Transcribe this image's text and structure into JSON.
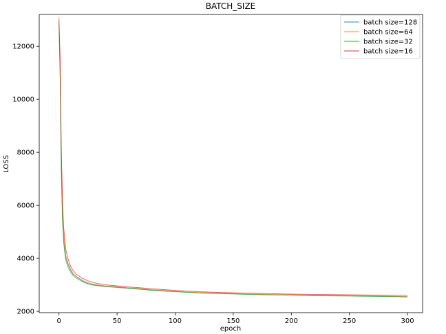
{
  "chart_data": {
    "type": "line",
    "title": "BATCH_SIZE",
    "xlabel": "epoch",
    "ylabel": "LOSS",
    "xlim": [
      -17,
      313
    ],
    "ylim": [
      1950,
      13200
    ],
    "x_ticks": [
      0,
      50,
      100,
      150,
      200,
      250,
      300
    ],
    "y_ticks": [
      2000,
      4000,
      6000,
      8000,
      10000,
      12000
    ],
    "grid": false,
    "legend_position": "top-right",
    "x": [
      0,
      1,
      2,
      3,
      4,
      5,
      6,
      8,
      10,
      12,
      15,
      20,
      25,
      30,
      40,
      50,
      60,
      70,
      80,
      90,
      100,
      120,
      140,
      160,
      180,
      200,
      220,
      240,
      260,
      280,
      300
    ],
    "series": [
      {
        "name": "batch size=128",
        "color": "#1f77b4",
        "values": [
          12900,
          11000,
          7500,
          5600,
          4800,
          4300,
          4000,
          3750,
          3550,
          3400,
          3300,
          3150,
          3050,
          3000,
          2950,
          2920,
          2880,
          2850,
          2800,
          2780,
          2750,
          2700,
          2680,
          2650,
          2630,
          2620,
          2600,
          2590,
          2580,
          2570,
          2550
        ]
      },
      {
        "name": "batch size=64",
        "color": "#ff7f0e",
        "values": [
          13100,
          11300,
          7800,
          5800,
          4900,
          4400,
          4100,
          3800,
          3600,
          3450,
          3320,
          3180,
          3080,
          3020,
          2960,
          2930,
          2890,
          2860,
          2820,
          2790,
          2760,
          2710,
          2690,
          2660,
          2640,
          2630,
          2610,
          2600,
          2590,
          2580,
          2560
        ]
      },
      {
        "name": "batch size=32",
        "color": "#2ca02c",
        "values": [
          12800,
          10800,
          7200,
          5400,
          4600,
          4200,
          3900,
          3650,
          3480,
          3350,
          3250,
          3120,
          3030,
          2980,
          2930,
          2900,
          2860,
          2830,
          2790,
          2760,
          2740,
          2690,
          2670,
          2640,
          2620,
          2610,
          2590,
          2580,
          2570,
          2560,
          2540
        ]
      },
      {
        "name": "batch size=16",
        "color": "#d62728",
        "values": [
          13000,
          11500,
          8200,
          6200,
          5200,
          4700,
          4300,
          3950,
          3700,
          3550,
          3400,
          3250,
          3150,
          3080,
          3000,
          2960,
          2920,
          2890,
          2850,
          2820,
          2790,
          2740,
          2710,
          2690,
          2670,
          2650,
          2640,
          2630,
          2620,
          2610,
          2600
        ]
      }
    ]
  }
}
